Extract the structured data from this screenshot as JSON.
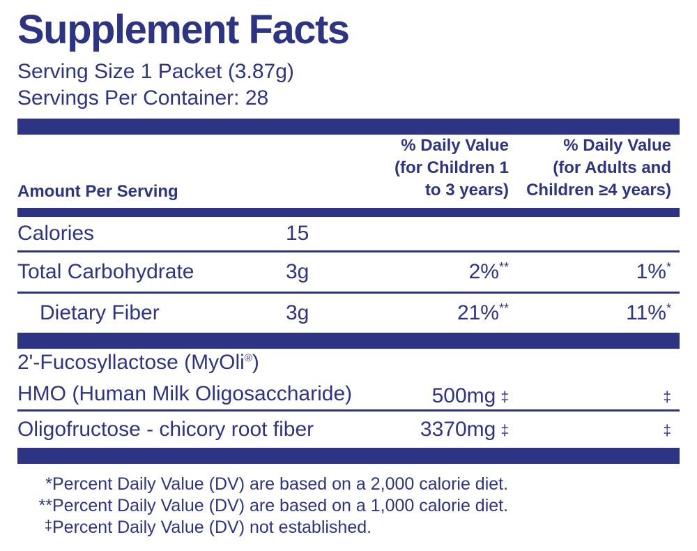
{
  "colors": {
    "navy": "#2d3484",
    "background": "#ffffff"
  },
  "header": {
    "title": "Supplement Facts",
    "serving_size": "Serving Size 1 Packet (3.87g)",
    "servings_per_container": "Servings Per Container: 28"
  },
  "table": {
    "amount_header": "Amount Per Serving",
    "dv_children_header": {
      "line1": "% Daily Value",
      "line2": "(for Children 1",
      "line3": "to 3 years)"
    },
    "dv_adults_header": {
      "line1": "% Daily Value",
      "line2": "(for Adults and",
      "line3": "Children ≥4 years)"
    },
    "rows": [
      {
        "name": "Calories",
        "amount": "15",
        "dv_children": "",
        "dv_children_mark": "",
        "dv_adults": "",
        "dv_adults_mark": ""
      },
      {
        "name": "Total Carbohydrate",
        "amount": "3g",
        "dv_children": "2%",
        "dv_children_mark": "**",
        "dv_adults": "1%",
        "dv_adults_mark": "*"
      },
      {
        "name": "Dietary Fiber",
        "amount": "3g",
        "dv_children": "21%",
        "dv_children_mark": "**",
        "dv_adults": "11%",
        "dv_adults_mark": "*"
      }
    ]
  },
  "ingredients": [
    {
      "name_line1": "2'-Fucosyllactose (MyOli",
      "name_reg": "®",
      "name_line1_close": ")",
      "name_line2": "HMO (Human Milk Oligosaccharide)",
      "amount": "500mg",
      "amount_mark": "‡",
      "dv_adults_mark": "‡"
    },
    {
      "name_line1": "Oligofructose - chicory root fiber",
      "amount": "3370mg",
      "amount_mark": "‡",
      "dv_adults_mark": "‡"
    }
  ],
  "footnotes": [
    {
      "marker": "*",
      "text": "Percent Daily Value (DV) are based on a 2,000 calorie diet."
    },
    {
      "marker": "**",
      "text": "Percent Daily Value (DV) are based on a 1,000 calorie diet."
    },
    {
      "marker": "‡",
      "text": "Percent Daily Value (DV) not established."
    }
  ]
}
